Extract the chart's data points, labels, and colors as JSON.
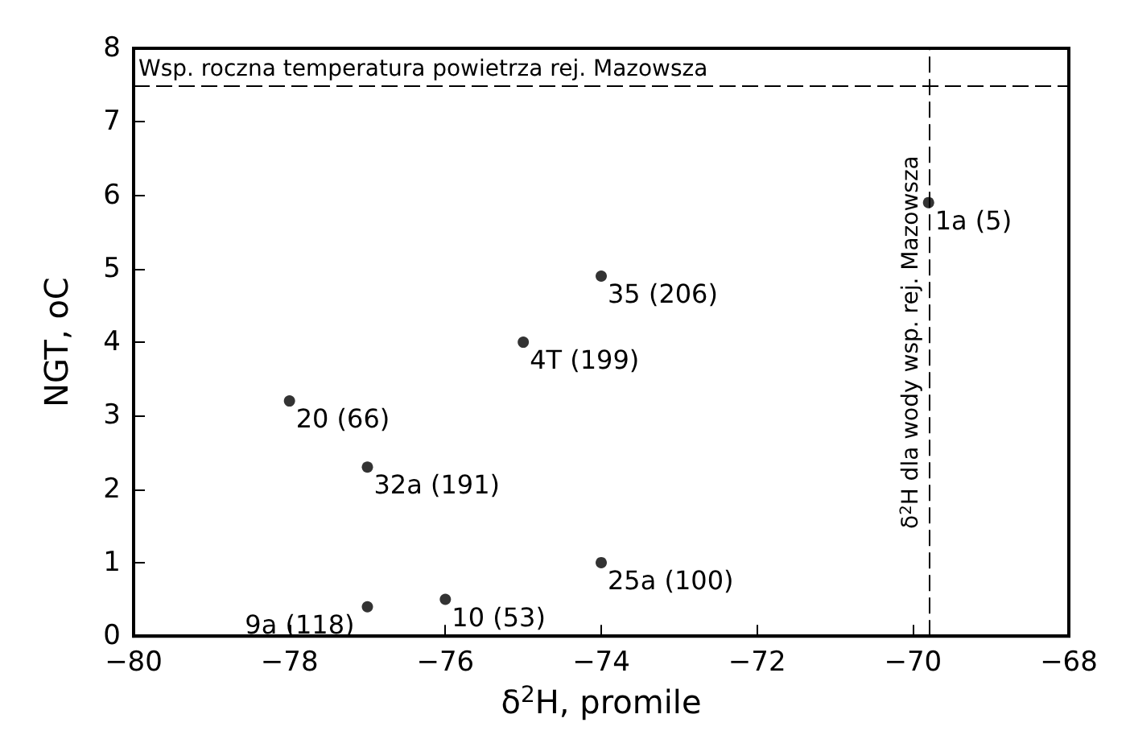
{
  "chart_data": {
    "type": "scatter",
    "xlabel": "δ$^{2}$H, promile",
    "ylabel": "NGT, oC",
    "x": [
      -69.8,
      -74,
      -75,
      -78,
      -77,
      -74,
      -76,
      -77
    ],
    "values": [
      5.9,
      4.9,
      4.0,
      3.2,
      2.3,
      1.0,
      0.5,
      0.4
    ],
    "color": "#000000",
    "marker": "circle",
    "xlim": [
      -80,
      -68
    ],
    "xticks": [
      -80,
      -78,
      -76,
      -74,
      -72,
      -70,
      -68
    ],
    "ylim": [
      0,
      8
    ],
    "yticks": [
      0,
      1,
      2,
      3,
      4,
      5,
      6,
      7,
      8
    ],
    "grid": false,
    "ref_lines": [
      {
        "axis": "y",
        "value": 7.5,
        "label": "Wsp. roczna temperatura powietrza rej. Mazowsza",
        "line_style": "dashed",
        "color": "#000000"
      },
      {
        "axis": "x",
        "value": -69.8,
        "label": "δ$^{2}$H dla wody wsp. rej. Mazowsza",
        "line_style": "dashed",
        "color": "#000000"
      }
    ],
    "annotations": [
      {
        "text": "1a (5)",
        "x": -69.8,
        "y": 5.9
      },
      {
        "text": "35 (206)",
        "x": -74,
        "y": 4.9
      },
      {
        "text": "4T (199)",
        "x": -75,
        "y": 4.0
      },
      {
        "text": "20 (66)",
        "x": -78,
        "y": 3.2
      },
      {
        "text": "32a (191)",
        "x": -77,
        "y": 2.3
      },
      {
        "text": "25a (100)",
        "x": -74,
        "y": 1.0
      },
      {
        "text": "10 (53)",
        "x": -76,
        "y": 0.5
      },
      {
        "text": "9a (118)",
        "x": -77,
        "y": 0.4
      }
    ]
  }
}
